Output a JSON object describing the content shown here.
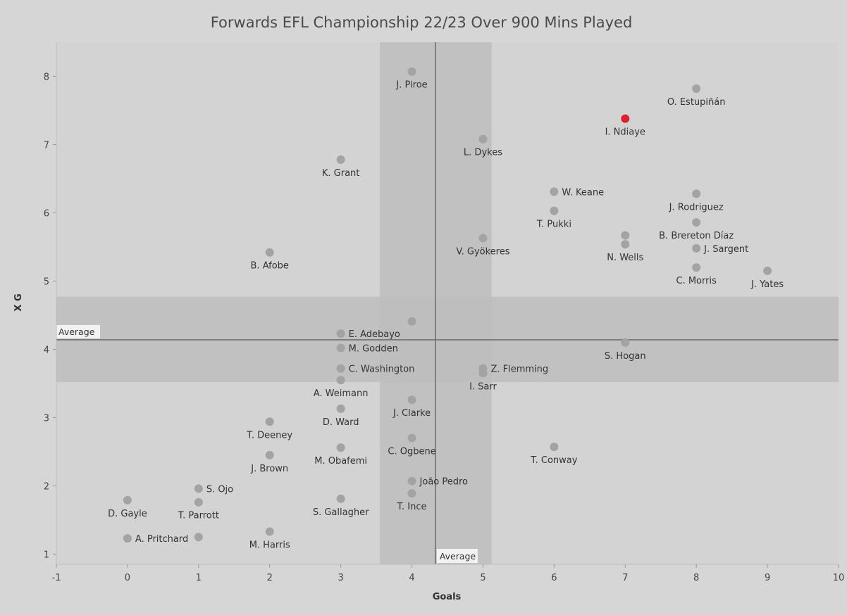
{
  "chart_data": {
    "type": "scatter",
    "title": "Forwards EFL Championship 22/23 Over 900 Mins Played",
    "xlabel": "Goals",
    "ylabel": "X G",
    "xlim": [
      -1,
      10
    ],
    "ylim": [
      0.85,
      8.5
    ],
    "xticks": [
      -1,
      0,
      1,
      2,
      3,
      4,
      5,
      6,
      7,
      8,
      9,
      10
    ],
    "yticks": [
      1,
      2,
      3,
      4,
      5,
      6,
      7,
      8
    ],
    "grid": false,
    "colors": {
      "point": "#a3a3a3",
      "highlight": "#e0202f",
      "band": "#bdbdbd",
      "avg_line": "#6b6b6b",
      "background": "#d6d6d6",
      "plot_background": "#d3d3d3"
    },
    "reference_lines": {
      "x": {
        "label": "Average",
        "value": 4.33,
        "band": [
          3.55,
          5.12
        ]
      },
      "y": {
        "label": "Average",
        "value": 4.14,
        "band": [
          3.52,
          4.77
        ]
      }
    },
    "points": [
      {
        "name": "J. Piroe",
        "x": 4,
        "y": 8.07,
        "label_pos": "below"
      },
      {
        "name": "O. Estupiñán",
        "x": 8,
        "y": 7.82,
        "label_pos": "below"
      },
      {
        "name": "I. Ndiaye",
        "x": 7,
        "y": 7.38,
        "label_pos": "below",
        "highlight": true
      },
      {
        "name": "L. Dykes",
        "x": 5,
        "y": 7.08,
        "label_pos": "below"
      },
      {
        "name": "K. Grant",
        "x": 3,
        "y": 6.78,
        "label_pos": "below"
      },
      {
        "name": "W. Keane",
        "x": 6,
        "y": 6.31,
        "label_pos": "right"
      },
      {
        "name": "J. Rodriguez",
        "x": 8,
        "y": 6.28,
        "label_pos": "below"
      },
      {
        "name": "T. Pukki",
        "x": 6,
        "y": 6.03,
        "label_pos": "below"
      },
      {
        "name": "B. Brereton Díaz",
        "x": 8,
        "y": 5.86,
        "label_pos": "below"
      },
      {
        "name": "",
        "x": 7,
        "y": 5.67,
        "label_pos": "none"
      },
      {
        "name": "V. Gyökeres",
        "x": 5,
        "y": 5.63,
        "label_pos": "below"
      },
      {
        "name": "N. Wells",
        "x": 7,
        "y": 5.54,
        "label_pos": "below"
      },
      {
        "name": "J. Sargent",
        "x": 8,
        "y": 5.48,
        "label_pos": "right"
      },
      {
        "name": "B. Afobe",
        "x": 2,
        "y": 5.42,
        "label_pos": "below"
      },
      {
        "name": "C. Morris",
        "x": 8,
        "y": 5.2,
        "label_pos": "below"
      },
      {
        "name": "J. Yates",
        "x": 9,
        "y": 5.15,
        "label_pos": "below"
      },
      {
        "name": "",
        "x": 4,
        "y": 4.41,
        "label_pos": "none"
      },
      {
        "name": "E. Adebayo",
        "x": 3,
        "y": 4.23,
        "label_pos": "right"
      },
      {
        "name": "S. Hogan",
        "x": 7,
        "y": 4.1,
        "label_pos": "below"
      },
      {
        "name": "M. Godden",
        "x": 3,
        "y": 4.02,
        "label_pos": "right"
      },
      {
        "name": "C. Washington",
        "x": 3,
        "y": 3.72,
        "label_pos": "right"
      },
      {
        "name": "Z. Flemming",
        "x": 5,
        "y": 3.72,
        "label_pos": "right"
      },
      {
        "name": "I. Sarr",
        "x": 5,
        "y": 3.65,
        "label_pos": "below"
      },
      {
        "name": "A. Weimann",
        "x": 3,
        "y": 3.55,
        "label_pos": "below"
      },
      {
        "name": "J. Clarke",
        "x": 4,
        "y": 3.26,
        "label_pos": "below"
      },
      {
        "name": "D. Ward",
        "x": 3,
        "y": 3.13,
        "label_pos": "below"
      },
      {
        "name": "T. Deeney",
        "x": 2,
        "y": 2.94,
        "label_pos": "below"
      },
      {
        "name": "C. Ogbene",
        "x": 4,
        "y": 2.7,
        "label_pos": "below"
      },
      {
        "name": "T. Conway",
        "x": 6,
        "y": 2.57,
        "label_pos": "below"
      },
      {
        "name": "M. Obafemi",
        "x": 3,
        "y": 2.56,
        "label_pos": "below"
      },
      {
        "name": "J. Brown",
        "x": 2,
        "y": 2.45,
        "label_pos": "below"
      },
      {
        "name": "João Pedro",
        "x": 4,
        "y": 2.07,
        "label_pos": "right"
      },
      {
        "name": "S. Ojo",
        "x": 1,
        "y": 1.96,
        "label_pos": "right"
      },
      {
        "name": "T. Ince",
        "x": 4,
        "y": 1.89,
        "label_pos": "below"
      },
      {
        "name": "S. Gallagher",
        "x": 3,
        "y": 1.81,
        "label_pos": "below"
      },
      {
        "name": "D. Gayle",
        "x": 0,
        "y": 1.79,
        "label_pos": "below"
      },
      {
        "name": "T. Parrott",
        "x": 1,
        "y": 1.76,
        "label_pos": "below"
      },
      {
        "name": "M. Harris",
        "x": 2,
        "y": 1.33,
        "label_pos": "below"
      },
      {
        "name": "",
        "x": 1,
        "y": 1.25,
        "label_pos": "none"
      },
      {
        "name": "A. Pritchard",
        "x": 0,
        "y": 1.23,
        "label_pos": "right"
      }
    ]
  }
}
